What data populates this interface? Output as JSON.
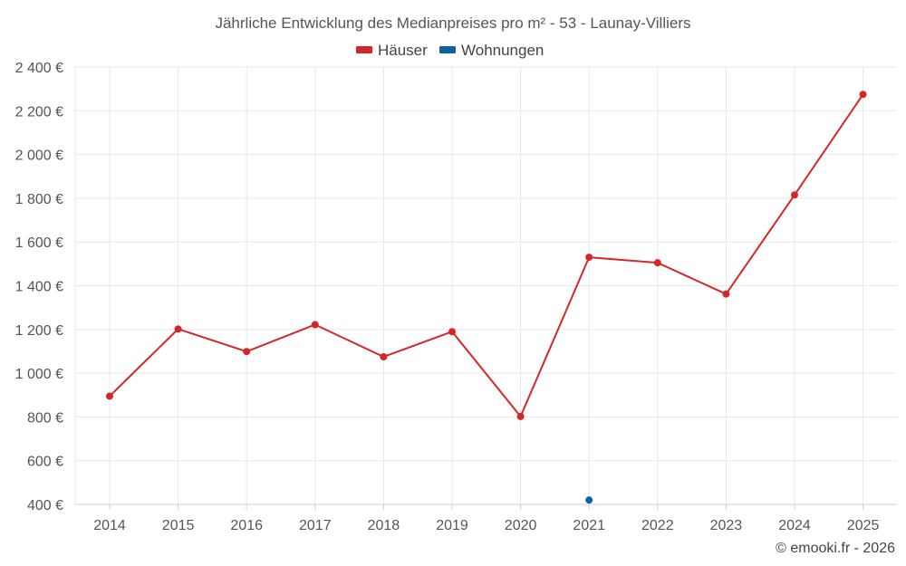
{
  "chart_data": {
    "type": "line",
    "title": "Jährliche Entwicklung des Medianpreises pro m² - 53 - Launay-Villiers",
    "categories": [
      "2014",
      "2015",
      "2016",
      "2017",
      "2018",
      "2019",
      "2020",
      "2021",
      "2022",
      "2023",
      "2024",
      "2025"
    ],
    "series": [
      {
        "name": "Häuser",
        "color": "#d62728",
        "values": [
          895,
          1202,
          1099,
          1222,
          1075,
          1190,
          802,
          1530,
          1505,
          1362,
          1815,
          2275
        ]
      },
      {
        "name": "Wohnungen",
        "color": "#0e62a0",
        "values": [
          null,
          null,
          null,
          null,
          null,
          null,
          null,
          420,
          null,
          null,
          null,
          null
        ]
      }
    ],
    "ylim": [
      400,
      2400
    ],
    "yticks": [
      400,
      600,
      800,
      1000,
      1200,
      1400,
      1600,
      1800,
      2000,
      2200,
      2400
    ],
    "ytick_labels": [
      "400 €",
      "600 €",
      "800 €",
      "1 000 €",
      "1 200 €",
      "1 400 €",
      "1 600 €",
      "1 800 €",
      "2 000 €",
      "2 200 €",
      "2 400 €"
    ],
    "grid": true,
    "legend_position": "top-center",
    "xlabel": "",
    "ylabel": ""
  },
  "credit": "© emooki.fr - 2026"
}
